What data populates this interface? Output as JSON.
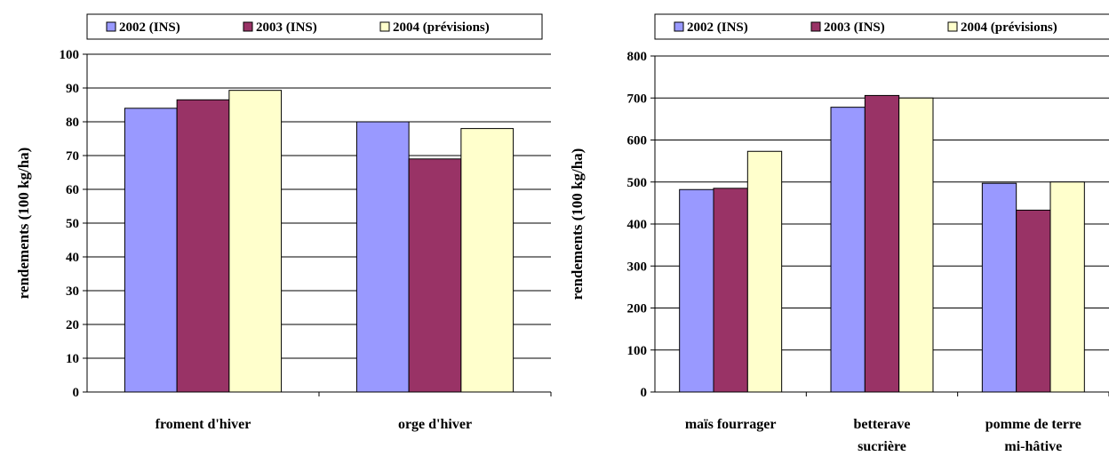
{
  "colors": {
    "series": [
      "#9999ff",
      "#993366",
      "#ffffcc"
    ],
    "grid": "#000000",
    "frame": "#000000"
  },
  "chart_data": [
    {
      "type": "bar",
      "ylabel": "rendements (100 kg/ha)",
      "ylim": [
        0,
        100
      ],
      "ytick_step": 10,
      "yticks": [
        "0",
        "10",
        "20",
        "30",
        "40",
        "50",
        "60",
        "70",
        "80",
        "90",
        "100"
      ],
      "grid": true,
      "legend": "top",
      "categories": [
        {
          "lines": [
            "froment d'hiver"
          ]
        },
        {
          "lines": [
            "orge d'hiver"
          ]
        }
      ],
      "series": [
        {
          "name": "2002 (INS)",
          "values": [
            84,
            80
          ]
        },
        {
          "name": "2003 (INS)",
          "values": [
            86.5,
            69
          ]
        },
        {
          "name": "2004 (prévisions)",
          "values": [
            89.3,
            78
          ]
        }
      ]
    },
    {
      "type": "bar",
      "ylabel": "rendements (100 kg/ha)",
      "ylim": [
        0,
        800
      ],
      "ytick_step": 100,
      "yticks": [
        "0",
        "100",
        "200",
        "300",
        "400",
        "500",
        "600",
        "700",
        "800"
      ],
      "grid": true,
      "legend": "top",
      "categories": [
        {
          "lines": [
            "maïs fourrager"
          ]
        },
        {
          "lines": [
            "betterave",
            "sucrière"
          ]
        },
        {
          "lines": [
            "pomme de terre",
            "mi-hâtive"
          ]
        }
      ],
      "series": [
        {
          "name": "2002 (INS)",
          "values": [
            482,
            678,
            497
          ]
        },
        {
          "name": "2003 (INS)",
          "values": [
            485,
            706,
            433
          ]
        },
        {
          "name": "2004 (prévisions)",
          "values": [
            573,
            700,
            500
          ]
        }
      ]
    }
  ]
}
